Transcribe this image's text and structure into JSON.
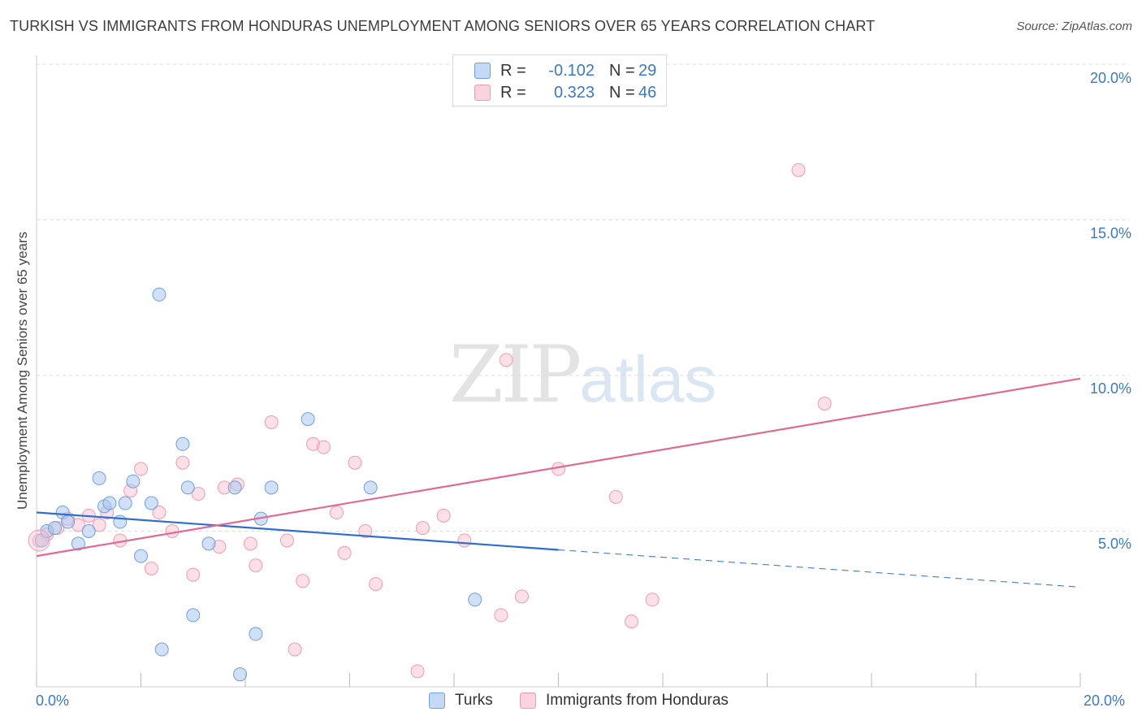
{
  "title": "TURKISH VS IMMIGRANTS FROM HONDURAS UNEMPLOYMENT AMONG SENIORS OVER 65 YEARS CORRELATION CHART",
  "source": "Source: ZipAtlas.com",
  "watermark": {
    "part1": "ZIP",
    "part2": "atlas"
  },
  "legend_top": {
    "rows": [
      {
        "r_label": "R =",
        "r_value": "-0.102",
        "n_label": "N =",
        "n_value": "29"
      },
      {
        "r_label": "R =",
        "r_value": "0.323",
        "n_label": "N =",
        "n_value": "46"
      }
    ]
  },
  "legend_bottom": {
    "items": [
      "Turks",
      "Immigrants from Honduras"
    ]
  },
  "colors": {
    "turks_fill": "#a9c8f0",
    "turks_stroke": "#6f9fdc",
    "turks_line": "#2f6fcc",
    "honduras_fill": "#f9c6d4",
    "honduras_stroke": "#ef9ab3",
    "honduras_line": "#e06a93",
    "axis_text": "#3a78c9",
    "grid": "#dddddd"
  },
  "chart_data": {
    "type": "scatter",
    "title": "TURKISH VS IMMIGRANTS FROM HONDURAS UNEMPLOYMENT AMONG SENIORS OVER 65 YEARS CORRELATION CHART",
    "xlabel": "",
    "ylabel": "Unemployment Among Seniors over 65 years",
    "xlim": [
      0,
      20
    ],
    "ylim": [
      0,
      20
    ],
    "x_tick_labels": [
      "0.0%",
      "20.0%"
    ],
    "y_tick_labels": [
      "5.0%",
      "10.0%",
      "15.0%",
      "20.0%"
    ],
    "y_ticks": [
      5,
      10,
      15,
      20
    ],
    "x_minor_ticks": [
      0,
      2,
      4,
      6,
      8,
      10,
      12,
      14,
      16,
      18,
      20
    ],
    "grid": true,
    "legend_position": "top-center",
    "series": [
      {
        "name": "Turks",
        "r": -0.102,
        "n": 29,
        "points": [
          [
            0.1,
            4.7
          ],
          [
            0.2,
            5.0
          ],
          [
            0.35,
            5.1
          ],
          [
            0.5,
            5.6
          ],
          [
            0.6,
            5.3
          ],
          [
            0.8,
            4.6
          ],
          [
            1.0,
            5.0
          ],
          [
            1.2,
            6.7
          ],
          [
            1.3,
            5.8
          ],
          [
            1.4,
            5.9
          ],
          [
            1.6,
            5.3
          ],
          [
            1.7,
            5.9
          ],
          [
            1.85,
            6.6
          ],
          [
            2.0,
            4.2
          ],
          [
            2.2,
            5.9
          ],
          [
            2.35,
            12.6
          ],
          [
            2.4,
            1.2
          ],
          [
            2.8,
            7.8
          ],
          [
            2.9,
            6.4
          ],
          [
            3.0,
            2.3
          ],
          [
            3.3,
            4.6
          ],
          [
            3.8,
            6.4
          ],
          [
            3.9,
            0.4
          ],
          [
            4.2,
            1.7
          ],
          [
            4.3,
            5.4
          ],
          [
            4.5,
            6.4
          ],
          [
            5.2,
            8.6
          ],
          [
            6.4,
            6.4
          ],
          [
            8.4,
            2.8
          ]
        ],
        "trend": {
          "x0": 0,
          "y0": 5.6,
          "x1": 10,
          "y1": 4.4,
          "dashed_to_x": 20,
          "dashed_y": 3.2
        }
      },
      {
        "name": "Immigrants from Honduras",
        "r": 0.323,
        "n": 46,
        "points": [
          [
            0.05,
            4.7
          ],
          [
            0.2,
            4.9
          ],
          [
            0.4,
            5.1
          ],
          [
            0.6,
            5.4
          ],
          [
            0.8,
            5.2
          ],
          [
            1.0,
            5.5
          ],
          [
            1.2,
            5.2
          ],
          [
            1.35,
            5.6
          ],
          [
            1.6,
            4.7
          ],
          [
            1.8,
            6.3
          ],
          [
            2.0,
            7.0
          ],
          [
            2.2,
            3.8
          ],
          [
            2.35,
            5.6
          ],
          [
            2.6,
            5.0
          ],
          [
            2.8,
            7.2
          ],
          [
            3.0,
            3.6
          ],
          [
            3.1,
            6.2
          ],
          [
            3.5,
            4.5
          ],
          [
            3.6,
            6.4
          ],
          [
            3.85,
            6.5
          ],
          [
            4.1,
            4.6
          ],
          [
            4.2,
            3.9
          ],
          [
            4.5,
            8.5
          ],
          [
            4.8,
            4.7
          ],
          [
            4.95,
            1.2
          ],
          [
            5.1,
            3.4
          ],
          [
            5.3,
            7.8
          ],
          [
            5.5,
            7.7
          ],
          [
            5.75,
            5.6
          ],
          [
            5.9,
            4.3
          ],
          [
            6.1,
            7.2
          ],
          [
            6.3,
            5.0
          ],
          [
            6.5,
            3.3
          ],
          [
            7.3,
            0.5
          ],
          [
            7.4,
            5.1
          ],
          [
            7.8,
            5.5
          ],
          [
            8.2,
            4.7
          ],
          [
            8.9,
            2.3
          ],
          [
            9.0,
            10.5
          ],
          [
            9.3,
            2.9
          ],
          [
            10.0,
            7.0
          ],
          [
            11.1,
            6.1
          ],
          [
            11.4,
            2.1
          ],
          [
            11.8,
            2.8
          ],
          [
            14.6,
            16.6
          ],
          [
            15.1,
            9.1
          ]
        ],
        "trend": {
          "x0": 0,
          "y0": 4.2,
          "x1": 20,
          "y1": 9.9
        }
      }
    ]
  }
}
